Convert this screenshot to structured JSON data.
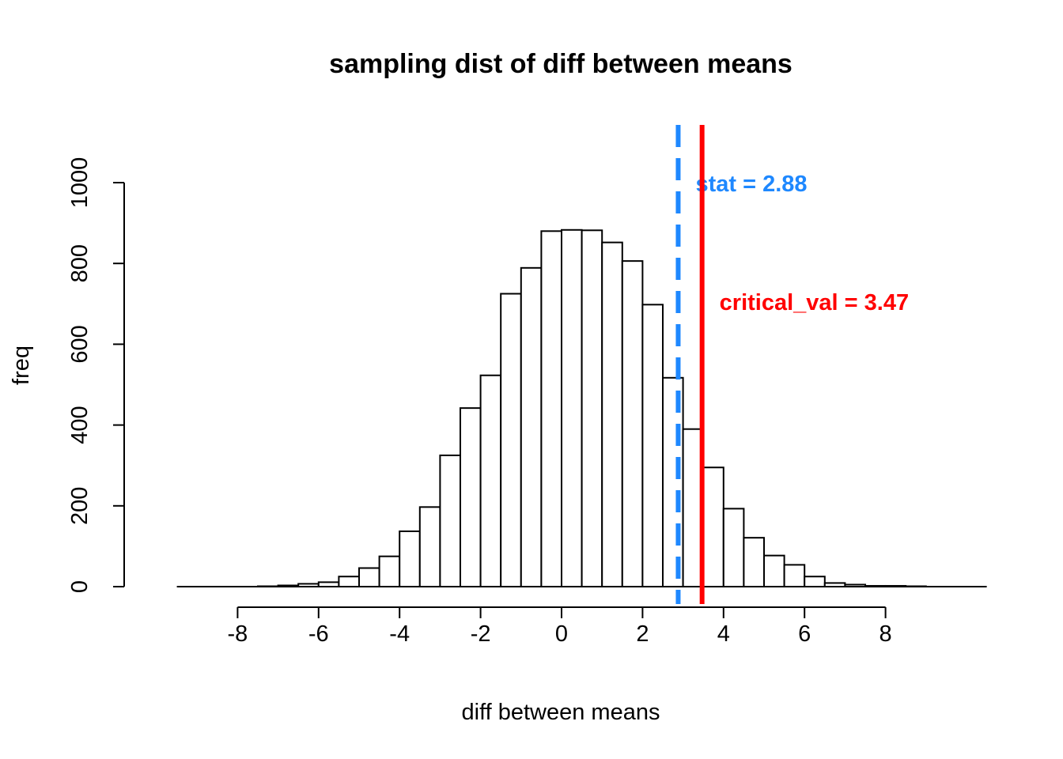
{
  "chart_data": {
    "type": "bar",
    "title": "sampling dist of diff between means",
    "xlabel": "diff between means",
    "ylabel": "freq",
    "bin_width": 0.5,
    "bin_start": -9.5,
    "values": [
      0,
      0,
      0,
      0,
      1,
      3,
      7,
      11,
      25,
      46,
      75,
      137,
      197,
      325,
      442,
      523,
      725,
      789,
      880,
      883,
      882,
      852,
      806,
      698,
      517,
      390,
      295,
      193,
      121,
      77,
      54,
      25,
      9,
      5,
      2,
      2,
      1,
      0,
      0,
      0
    ],
    "xlim": [
      -9.5,
      10.5
    ],
    "ylim": [
      0,
      1000
    ],
    "x_ticks": [
      -8,
      -6,
      -4,
      -2,
      0,
      2,
      4,
      6,
      8
    ],
    "x_tick_labels": [
      "-8",
      "-6",
      "-4",
      "-2",
      "0",
      "2",
      "4",
      "6",
      "8"
    ],
    "y_ticks": [
      0,
      200,
      400,
      600,
      800,
      1000
    ],
    "y_tick_labels": [
      "0",
      "200",
      "400",
      "600",
      "800",
      "1000"
    ],
    "lines": [
      {
        "name": "stat",
        "x": 2.88,
        "color": "#1E88FF",
        "dashed": true,
        "label": "stat = 2.88"
      },
      {
        "name": "critical_val",
        "x": 3.47,
        "color": "#FF0000",
        "dashed": false,
        "label": "critical_val = 3.47"
      }
    ],
    "grid": false
  }
}
